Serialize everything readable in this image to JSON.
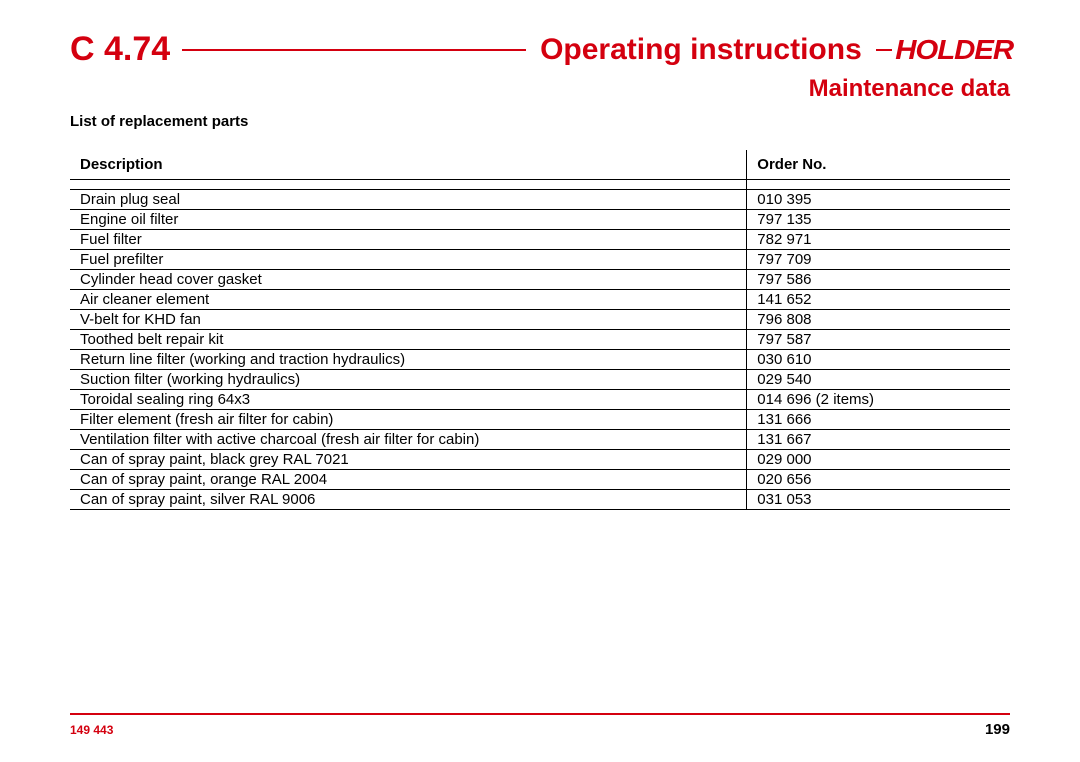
{
  "header": {
    "model_code": "C 4.74",
    "doc_title": "Operating instructions",
    "brand": "HOLDER",
    "accent_color": "#d4000f"
  },
  "section_title": "Maintenance  data",
  "list_heading": "List of replacement parts",
  "table": {
    "columns": {
      "description": "Description",
      "order_no": "Order No."
    },
    "rows": [
      {
        "description": "Drain plug seal",
        "order_no": "010 395"
      },
      {
        "description": "Engine oil filter",
        "order_no": "797 135"
      },
      {
        "description": "Fuel filter",
        "order_no": "782 971"
      },
      {
        "description": "Fuel prefilter",
        "order_no": "797 709"
      },
      {
        "description": "Cylinder head cover gasket",
        "order_no": "797 586"
      },
      {
        "description": "Air cleaner element",
        "order_no": "141 652"
      },
      {
        "description": "V-belt for KHD fan",
        "order_no": "796 808"
      },
      {
        "description": "Toothed belt repair kit",
        "order_no": "797 587"
      },
      {
        "description": "Return line filter (working and traction hydraulics)",
        "order_no": "030 610"
      },
      {
        "description": "Suction filter (working hydraulics)",
        "order_no": "029 540"
      },
      {
        "description": "Toroidal sealing ring 64x3",
        "order_no": "014 696 (2 items)"
      },
      {
        "description": "Filter element (fresh air filter for cabin)",
        "order_no": "131 666"
      },
      {
        "description": "Ventilation filter with active charcoal (fresh air filter for cabin)",
        "order_no": "131 667"
      },
      {
        "description": "Can of spray paint, black grey RAL 7021",
        "order_no": "029 000"
      },
      {
        "description": "Can of spray paint, orange RAL 2004",
        "order_no": "020 656"
      },
      {
        "description": "Can of spray paint, silver RAL 9006",
        "order_no": "031 053"
      }
    ]
  },
  "footer": {
    "left_code": "149 443",
    "page_number": "199"
  }
}
